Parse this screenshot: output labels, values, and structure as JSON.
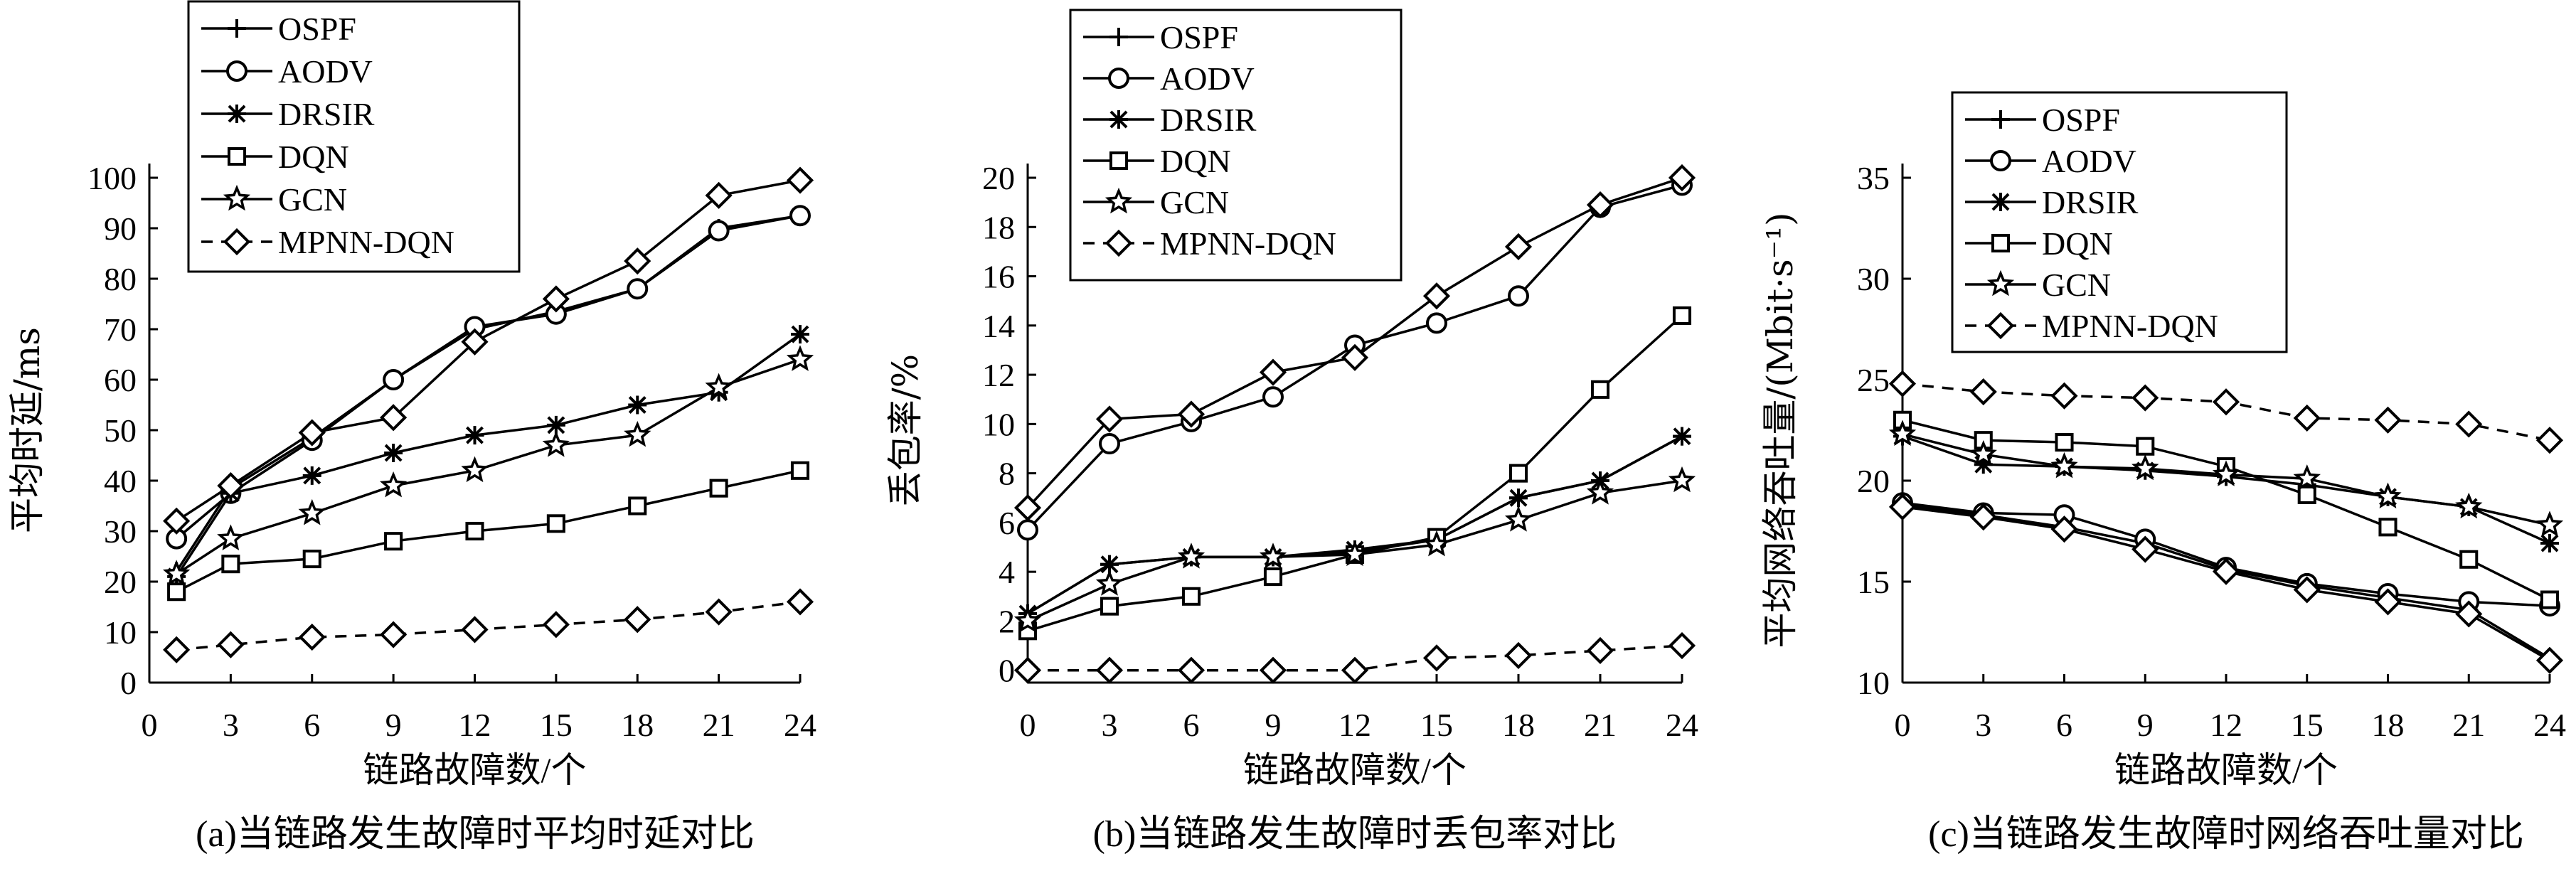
{
  "chart_data": [
    {
      "type": "line",
      "panel": "a",
      "caption": "(a)当链路发生故障时平均时延对比",
      "xlabel": "链路故障数/个",
      "ylabel": "平均时延/ms",
      "x": [
        1,
        3,
        6,
        9,
        12,
        15,
        18,
        21,
        24
      ],
      "xticks": [
        "0",
        "3",
        "6",
        "9",
        "12",
        "15",
        "18",
        "21",
        "24"
      ],
      "xlim": [
        0,
        24
      ],
      "ylim": [
        0,
        100
      ],
      "yticks": [
        "0",
        "10",
        "20",
        "30",
        "40",
        "50",
        "60",
        "70",
        "80",
        "90",
        "100"
      ],
      "grid": false,
      "legend_position": "top-left",
      "series": [
        {
          "name": "OSPF",
          "marker": "plus",
          "dashed": false,
          "values": [
            22,
            38.5,
            48.5,
            60,
            70,
            73.5,
            78,
            90,
            92.5
          ]
        },
        {
          "name": "AODV",
          "marker": "circle",
          "dashed": false,
          "values": [
            28.5,
            37.5,
            48,
            60,
            70.5,
            73,
            78,
            89.5,
            92.5
          ]
        },
        {
          "name": "DRSIR",
          "marker": "asterisk",
          "dashed": false,
          "values": [
            21,
            37.5,
            41,
            45.5,
            49,
            51,
            55,
            57.5,
            69
          ]
        },
        {
          "name": "DQN",
          "marker": "square",
          "dashed": false,
          "values": [
            18,
            23.5,
            24.5,
            28,
            30,
            31.5,
            35,
            38.5,
            42
          ]
        },
        {
          "name": "GCN",
          "marker": "star",
          "dashed": false,
          "values": [
            21.5,
            28.5,
            33.5,
            39,
            42,
            47,
            49,
            58.5,
            64
          ]
        },
        {
          "name": "MPNN-DQN",
          "marker": "diamond",
          "dashed": true,
          "values": [
            6.5,
            7.5,
            9,
            9.5,
            10.5,
            11.5,
            12.5,
            14,
            16
          ]
        },
        {
          "name": "",
          "marker": "diamond",
          "dashed": false,
          "values": [
            32,
            39,
            49.5,
            52.5,
            67.5,
            76,
            83.5,
            96.5,
            99.5
          ]
        }
      ]
    },
    {
      "type": "line",
      "panel": "b",
      "caption": "(b)当链路发生故障时丢包率对比",
      "xlabel": "链路故障数/个",
      "ylabel": "丢包率/%",
      "x": [
        0,
        3,
        6,
        9,
        12,
        15,
        18,
        21,
        24
      ],
      "xticks": [
        "0",
        "3",
        "6",
        "9",
        "12",
        "15",
        "18",
        "21",
        "24"
      ],
      "xlim": [
        0,
        24
      ],
      "ylim": [
        -0.5,
        20
      ],
      "yticks": [
        "0",
        "2",
        "4",
        "6",
        "8",
        "10",
        "12",
        "14",
        "16",
        "18",
        "20"
      ],
      "grid": false,
      "legend_position": "top-left",
      "series": [
        {
          "name": "OSPF",
          "marker": "plus",
          "dashed": false,
          "values": [
            2.3,
            4.3,
            4.6,
            4.6,
            4.8,
            5.3,
            7.0,
            7.7,
            9.5
          ]
        },
        {
          "name": "AODV",
          "marker": "circle",
          "dashed": false,
          "values": [
            5.7,
            9.2,
            10.1,
            11.1,
            13.2,
            14.1,
            15.2,
            18.8,
            19.7
          ]
        },
        {
          "name": "DRSIR",
          "marker": "asterisk",
          "dashed": false,
          "values": [
            2.3,
            4.3,
            4.6,
            4.6,
            4.9,
            5.3,
            7.0,
            7.7,
            9.5
          ]
        },
        {
          "name": "DQN",
          "marker": "square",
          "dashed": false,
          "values": [
            1.6,
            2.6,
            3.0,
            3.8,
            4.7,
            5.4,
            8.0,
            11.4,
            14.4
          ]
        },
        {
          "name": "GCN",
          "marker": "star",
          "dashed": false,
          "values": [
            2.0,
            3.5,
            4.6,
            4.6,
            4.7,
            5.1,
            6.1,
            7.2,
            7.7
          ]
        },
        {
          "name": "MPNN-DQN",
          "marker": "diamond",
          "dashed": true,
          "values": [
            0,
            0,
            0,
            0,
            0,
            0.5,
            0.6,
            0.8,
            1.0
          ]
        },
        {
          "name": "",
          "marker": "diamond",
          "dashed": false,
          "values": [
            6.6,
            10.2,
            10.4,
            12.1,
            12.7,
            15.2,
            17.2,
            18.9,
            20.0
          ]
        }
      ]
    },
    {
      "type": "line",
      "panel": "c",
      "caption": "(c)当链路发生故障时网络吞吐量对比",
      "xlabel": "链路故障数/个",
      "ylabel": "平均网络吞吐量/(Mbit·s⁻¹)",
      "x": [
        0,
        3,
        6,
        9,
        12,
        15,
        18,
        21,
        24
      ],
      "xticks": [
        "0",
        "3",
        "6",
        "9",
        "12",
        "15",
        "18",
        "21",
        "24"
      ],
      "xlim": [
        0,
        24
      ],
      "ylim": [
        10,
        35
      ],
      "yticks": [
        "10",
        "15",
        "20",
        "25",
        "30",
        "35"
      ],
      "grid": false,
      "legend_position": "top-left",
      "series": [
        {
          "name": "OSPF",
          "marker": "plus",
          "dashed": false,
          "values": [
            18.8,
            18.3,
            17.7,
            16.9,
            15.6,
            14.8,
            14.2,
            13.6,
            11.2
          ]
        },
        {
          "name": "AODV",
          "marker": "circle",
          "dashed": false,
          "values": [
            18.9,
            18.4,
            18.3,
            17.1,
            15.7,
            14.9,
            14.4,
            14.0,
            13.8
          ]
        },
        {
          "name": "DRSIR",
          "marker": "asterisk",
          "dashed": false,
          "values": [
            22.2,
            20.8,
            20.7,
            20.5,
            20.2,
            19.8,
            19.2,
            18.7,
            16.9
          ]
        },
        {
          "name": "DQN",
          "marker": "square",
          "dashed": false,
          "values": [
            23.0,
            22.0,
            21.9,
            21.7,
            20.7,
            19.3,
            17.7,
            16.1,
            14.1
          ]
        },
        {
          "name": "GCN",
          "marker": "star",
          "dashed": false,
          "values": [
            22.3,
            21.3,
            20.7,
            20.6,
            20.3,
            20.1,
            19.2,
            18.7,
            17.8
          ]
        },
        {
          "name": "MPNN-DQN",
          "marker": "diamond",
          "dashed": true,
          "values": [
            24.8,
            24.4,
            24.2,
            24.1,
            23.9,
            23.1,
            23.0,
            22.8,
            22.0
          ]
        },
        {
          "name": "",
          "marker": "diamond",
          "dashed": false,
          "values": [
            18.7,
            18.2,
            17.6,
            16.6,
            15.5,
            14.6,
            14.0,
            13.4,
            11.1
          ]
        }
      ]
    }
  ]
}
